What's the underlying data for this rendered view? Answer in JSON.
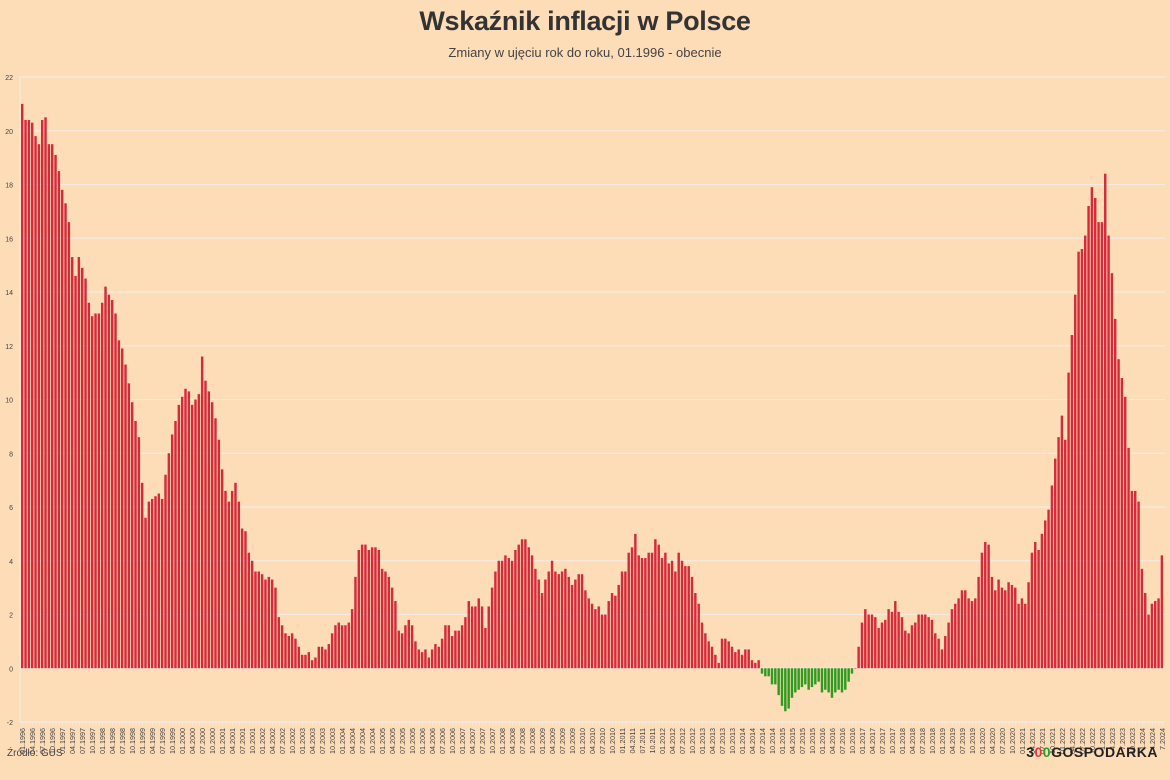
{
  "header": {
    "title": "Wskaźnik inflacji w Polsce",
    "subtitle": "Zmiany w ujęciu rok do roku, 01.1996 - obecnie"
  },
  "footer": {
    "source": "Źródło: GUS",
    "logo": {
      "part1": "3",
      "part2": "0",
      "part3": "0",
      "part4": "GOSPODARKA"
    }
  },
  "colors": {
    "positive": "#d42a3a",
    "negative": "#2e9a1e",
    "background": "#fddcb8",
    "grid": "#f4ebe0"
  },
  "chart_data": {
    "type": "bar",
    "title": "Wskaźnik inflacji w Polsce",
    "subtitle": "Zmiany w ujęciu rok do roku, 01.1996 - obecnie",
    "xlabel": "",
    "ylabel": "",
    "ylim": [
      -2,
      22
    ],
    "yticks": [
      -2,
      0,
      2,
      4,
      6,
      8,
      10,
      12,
      14,
      16,
      18,
      20,
      22
    ],
    "grid": true,
    "start": "01.1996",
    "label_every_months": 3,
    "x_tick_labels_note": "MM.YYYY every 3 months; from 2023 format M.YYYY (1.2023, 4.2023, 7.2023, 10.2023, 1.2024, 4.2024, 7.2024)",
    "values": [
      21.0,
      20.4,
      20.4,
      20.3,
      19.8,
      19.5,
      20.4,
      20.5,
      19.5,
      19.5,
      19.1,
      18.5,
      17.8,
      17.3,
      16.6,
      15.3,
      14.6,
      15.3,
      14.9,
      14.5,
      13.6,
      13.1,
      13.2,
      13.2,
      13.6,
      14.2,
      13.9,
      13.7,
      13.2,
      12.2,
      11.9,
      11.3,
      10.6,
      9.9,
      9.2,
      8.6,
      6.9,
      5.6,
      6.2,
      6.3,
      6.4,
      6.5,
      6.3,
      7.2,
      8.0,
      8.7,
      9.2,
      9.8,
      10.1,
      10.4,
      10.3,
      9.8,
      10.0,
      10.2,
      11.6,
      10.7,
      10.3,
      9.9,
      9.3,
      8.5,
      7.4,
      6.6,
      6.2,
      6.6,
      6.9,
      6.2,
      5.2,
      5.1,
      4.3,
      4.0,
      3.6,
      3.6,
      3.5,
      3.3,
      3.4,
      3.3,
      3.0,
      1.9,
      1.6,
      1.3,
      1.2,
      1.3,
      1.1,
      0.8,
      0.5,
      0.5,
      0.6,
      0.3,
      0.4,
      0.8,
      0.8,
      0.7,
      0.9,
      1.3,
      1.6,
      1.7,
      1.6,
      1.6,
      1.7,
      2.2,
      3.4,
      4.4,
      4.6,
      4.6,
      4.4,
      4.5,
      4.5,
      4.4,
      3.7,
      3.6,
      3.4,
      3.0,
      2.5,
      1.4,
      1.3,
      1.6,
      1.8,
      1.6,
      1.0,
      0.7,
      0.6,
      0.7,
      0.4,
      0.7,
      0.9,
      0.8,
      1.1,
      1.6,
      1.6,
      1.2,
      1.4,
      1.4,
      1.6,
      1.9,
      2.5,
      2.3,
      2.3,
      2.6,
      2.3,
      1.5,
      2.3,
      3.0,
      3.6,
      4.0,
      4.0,
      4.2,
      4.1,
      4.0,
      4.4,
      4.6,
      4.8,
      4.8,
      4.5,
      4.2,
      3.7,
      3.3,
      2.8,
      3.3,
      3.6,
      4.0,
      3.6,
      3.5,
      3.6,
      3.7,
      3.4,
      3.1,
      3.3,
      3.5,
      3.5,
      2.9,
      2.6,
      2.4,
      2.2,
      2.3,
      2.0,
      2.0,
      2.5,
      2.8,
      2.7,
      3.1,
      3.6,
      3.6,
      4.3,
      4.5,
      5.0,
      4.2,
      4.1,
      4.1,
      4.3,
      4.3,
      4.8,
      4.6,
      4.1,
      4.3,
      3.9,
      4.0,
      3.6,
      4.3,
      4.0,
      3.8,
      3.8,
      3.4,
      2.8,
      2.4,
      1.7,
      1.3,
      1.0,
      0.8,
      0.5,
      0.2,
      1.1,
      1.1,
      1.0,
      0.8,
      0.6,
      0.7,
      0.5,
      0.7,
      0.7,
      0.3,
      0.2,
      0.3,
      -0.2,
      -0.3,
      -0.3,
      -0.6,
      -0.6,
      -1.0,
      -1.4,
      -1.6,
      -1.5,
      -1.1,
      -0.9,
      -0.8,
      -0.7,
      -0.6,
      -0.8,
      -0.7,
      -0.6,
      -0.5,
      -0.9,
      -0.8,
      -0.9,
      -1.1,
      -0.9,
      -0.8,
      -0.9,
      -0.8,
      -0.5,
      -0.2,
      0.0,
      0.8,
      1.7,
      2.2,
      2.0,
      2.0,
      1.9,
      1.5,
      1.7,
      1.8,
      2.2,
      2.1,
      2.5,
      2.1,
      1.9,
      1.4,
      1.3,
      1.6,
      1.7,
      2.0,
      2.0,
      2.0,
      1.9,
      1.8,
      1.3,
      1.1,
      0.7,
      1.2,
      1.7,
      2.2,
      2.4,
      2.6,
      2.9,
      2.9,
      2.6,
      2.5,
      2.6,
      3.4,
      4.3,
      4.7,
      4.6,
      3.4,
      2.9,
      3.3,
      3.0,
      2.9,
      3.2,
      3.1,
      3.0,
      2.4,
      2.6,
      2.4,
      3.2,
      4.3,
      4.7,
      4.4,
      5.0,
      5.5,
      5.9,
      6.8,
      7.8,
      8.6,
      9.4,
      8.5,
      11.0,
      12.4,
      13.9,
      15.5,
      15.6,
      16.1,
      17.2,
      17.9,
      17.5,
      16.6,
      16.6,
      18.4,
      16.1,
      14.7,
      13.0,
      11.5,
      10.8,
      10.1,
      8.2,
      6.6,
      6.6,
      6.2,
      3.7,
      2.8,
      2.0,
      2.4,
      2.5,
      2.6,
      4.2
    ]
  }
}
